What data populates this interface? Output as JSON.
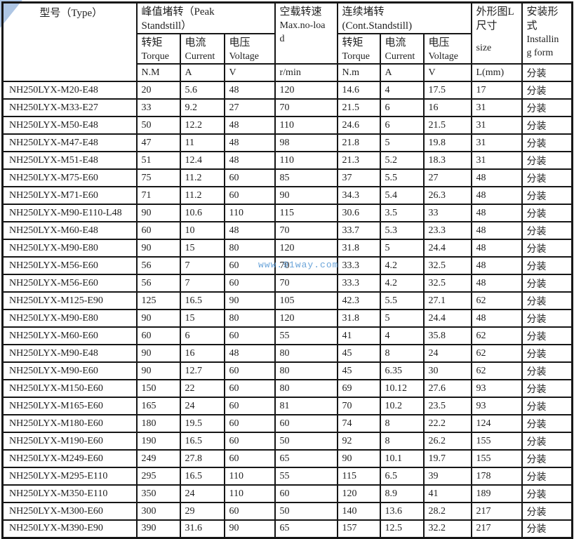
{
  "watermark": "www.91way.com",
  "colors": {
    "border": "#161616",
    "text": "#1f1f1f",
    "watermark": "#5b9bd5",
    "corner_triangle": "#aec6e4"
  },
  "header": {
    "type_label": "型号（Type）",
    "peak_group": "峰值堵转（Peak\nStandstill）",
    "cont_group": "连续堵转\n(Cont.Standstill)",
    "noload_cn": "空载转速",
    "noload_en": "Max.no-load",
    "size_cn": "外形图L尺寸",
    "size_en": "size",
    "install_cn": "安装形式",
    "install_en": "Installing form",
    "torque_cn": "转矩",
    "torque_en": "Torque",
    "current_cn": "电流",
    "current_en": "Current",
    "voltage_cn": "电压",
    "voltage_en": "Voltage",
    "units": {
      "peak_torque": "N.M",
      "peak_current": "A",
      "peak_voltage": "V",
      "noload": "r/min",
      "cont_torque": "N.m",
      "cont_current": "A",
      "cont_voltage": "V",
      "size": "L(mm)",
      "install": "分装"
    }
  },
  "rows": [
    {
      "model": "NH250LYX-M20-E48",
      "peak_torque": "20",
      "peak_current": "5.6",
      "peak_voltage": "48",
      "noload": "120",
      "cont_torque": "14.6",
      "cont_current": "4",
      "cont_voltage": "17.5",
      "size": "17",
      "install": "分装"
    },
    {
      "model": "NH250LYX-M33-E27",
      "peak_torque": "33",
      "peak_current": "9.2",
      "peak_voltage": "27",
      "noload": "70",
      "cont_torque": "21.5",
      "cont_current": "6",
      "cont_voltage": "16",
      "size": "31",
      "install": "分装"
    },
    {
      "model": "NH250LYX-M50-E48",
      "peak_torque": "50",
      "peak_current": "12.2",
      "peak_voltage": "48",
      "noload": "110",
      "cont_torque": "24.6",
      "cont_current": "6",
      "cont_voltage": "21.5",
      "size": "31",
      "install": "分装"
    },
    {
      "model": "NH250LYX-M47-E48",
      "peak_torque": "47",
      "peak_current": "11",
      "peak_voltage": "48",
      "noload": "98",
      "cont_torque": "21.8",
      "cont_current": "5",
      "cont_voltage": "19.8",
      "size": "31",
      "install": "分装"
    },
    {
      "model": "NH250LYX-M51-E48",
      "peak_torque": "51",
      "peak_current": "12.4",
      "peak_voltage": "48",
      "noload": "110",
      "cont_torque": "21.3",
      "cont_current": "5.2",
      "cont_voltage": "18.3",
      "size": "31",
      "install": "分装"
    },
    {
      "model": "NH250LYX-M75-E60",
      "peak_torque": "75",
      "peak_current": "11.2",
      "peak_voltage": "60",
      "noload": "85",
      "cont_torque": "37",
      "cont_current": "5.5",
      "cont_voltage": "27",
      "size": "48",
      "install": "分装"
    },
    {
      "model": "NH250LYX-M71-E60",
      "peak_torque": "71",
      "peak_current": "11.2",
      "peak_voltage": "60",
      "noload": "90",
      "cont_torque": "34.3",
      "cont_current": "5.4",
      "cont_voltage": "26.3",
      "size": "48",
      "install": "分装"
    },
    {
      "model": "NH250LYX-M90-E110-L48",
      "peak_torque": "90",
      "peak_current": "10.6",
      "peak_voltage": "110",
      "noload": "115",
      "cont_torque": "30.6",
      "cont_current": "3.5",
      "cont_voltage": "33",
      "size": "48",
      "install": "分装"
    },
    {
      "model": "NH250LYX-M60-E48",
      "peak_torque": "60",
      "peak_current": "10",
      "peak_voltage": "48",
      "noload": "70",
      "cont_torque": "33.7",
      "cont_current": "5.3",
      "cont_voltage": "23.3",
      "size": "48",
      "install": "分装"
    },
    {
      "model": "NH250LYX-M90-E80",
      "peak_torque": "90",
      "peak_current": "15",
      "peak_voltage": "80",
      "noload": "120",
      "cont_torque": "31.8",
      "cont_current": "5",
      "cont_voltage": "24.4",
      "size": "48",
      "install": "分装"
    },
    {
      "model": "NH250LYX-M56-E60",
      "peak_torque": "56",
      "peak_current": "7",
      "peak_voltage": "60",
      "noload": "70",
      "cont_torque": "33.3",
      "cont_current": "4.2",
      "cont_voltage": "32.5",
      "size": "48",
      "install": "分装"
    },
    {
      "model": "NH250LYX-M56-E60",
      "peak_torque": "56",
      "peak_current": "7",
      "peak_voltage": "60",
      "noload": "70",
      "cont_torque": "33.3",
      "cont_current": "4.2",
      "cont_voltage": "32.5",
      "size": "48",
      "install": "分装"
    },
    {
      "model": "NH250LYX-M125-E90",
      "peak_torque": "125",
      "peak_current": "16.5",
      "peak_voltage": "90",
      "noload": "105",
      "cont_torque": "42.3",
      "cont_current": "5.5",
      "cont_voltage": "27.1",
      "size": "62",
      "install": "分装"
    },
    {
      "model": "NH250LYX-M90-E80",
      "peak_torque": "90",
      "peak_current": "15",
      "peak_voltage": "80",
      "noload": "120",
      "cont_torque": "31.8",
      "cont_current": "5",
      "cont_voltage": "24.4",
      "size": "48",
      "install": "分装"
    },
    {
      "model": "NH250LYX-M60-E60",
      "peak_torque": "60",
      "peak_current": "6",
      "peak_voltage": "60",
      "noload": "55",
      "cont_torque": "41",
      "cont_current": "4",
      "cont_voltage": "35.8",
      "size": "62",
      "install": "分装"
    },
    {
      "model": "NH250LYX-M90-E48",
      "peak_torque": "90",
      "peak_current": "16",
      "peak_voltage": "48",
      "noload": "80",
      "cont_torque": "45",
      "cont_current": "8",
      "cont_voltage": "24",
      "size": "62",
      "install": "分装"
    },
    {
      "model": "NH250LYX-M90-E60",
      "peak_torque": "90",
      "peak_current": "12.7",
      "peak_voltage": "60",
      "noload": "80",
      "cont_torque": "45",
      "cont_current": "6.35",
      "cont_voltage": "30",
      "size": "62",
      "install": "分装"
    },
    {
      "model": "NH250LYX-M150-E60",
      "peak_torque": "150",
      "peak_current": "22",
      "peak_voltage": "60",
      "noload": "80",
      "cont_torque": "69",
      "cont_current": "10.12",
      "cont_voltage": "27.6",
      "size": "93",
      "install": "分装"
    },
    {
      "model": "NH250LYX-M165-E60",
      "peak_torque": "165",
      "peak_current": "24",
      "peak_voltage": "60",
      "noload": "81",
      "cont_torque": "70",
      "cont_current": "10.2",
      "cont_voltage": "23.5",
      "size": "93",
      "install": "分装"
    },
    {
      "model": "NH250LYX-M180-E60",
      "peak_torque": "180",
      "peak_current": "19.5",
      "peak_voltage": "60",
      "noload": "60",
      "cont_torque": "74",
      "cont_current": "8",
      "cont_voltage": "22.2",
      "size": "124",
      "install": "分装"
    },
    {
      "model": "NH250LYX-M190-E60",
      "peak_torque": "190",
      "peak_current": "16.5",
      "peak_voltage": "60",
      "noload": "50",
      "cont_torque": "92",
      "cont_current": "8",
      "cont_voltage": "26.2",
      "size": "155",
      "install": "分装"
    },
    {
      "model": "NH250LYX-M249-E60",
      "peak_torque": "249",
      "peak_current": "27.8",
      "peak_voltage": "60",
      "noload": "65",
      "cont_torque": "90",
      "cont_current": "10.1",
      "cont_voltage": "19.7",
      "size": "155",
      "install": "分装"
    },
    {
      "model": "NH250LYX-M295-E110",
      "peak_torque": "295",
      "peak_current": "16.5",
      "peak_voltage": "110",
      "noload": "55",
      "cont_torque": "115",
      "cont_current": "6.5",
      "cont_voltage": "39",
      "size": "178",
      "install": "分装"
    },
    {
      "model": "NH250LYX-M350-E110",
      "peak_torque": "350",
      "peak_current": "24",
      "peak_voltage": "110",
      "noload": "60",
      "cont_torque": "120",
      "cont_current": "8.9",
      "cont_voltage": "41",
      "size": "189",
      "install": "分装"
    },
    {
      "model": "NH250LYX-M300-E60",
      "peak_torque": "300",
      "peak_current": "29",
      "peak_voltage": "60",
      "noload": "50",
      "cont_torque": "140",
      "cont_current": "13.6",
      "cont_voltage": "28.2",
      "size": "217",
      "install": "分装"
    },
    {
      "model": "NH250LYX-M390-E90",
      "peak_torque": "390",
      "peak_current": "31.6",
      "peak_voltage": "90",
      "noload": "65",
      "cont_torque": "157",
      "cont_current": "12.5",
      "cont_voltage": "32.2",
      "size": "217",
      "install": "分装"
    }
  ]
}
